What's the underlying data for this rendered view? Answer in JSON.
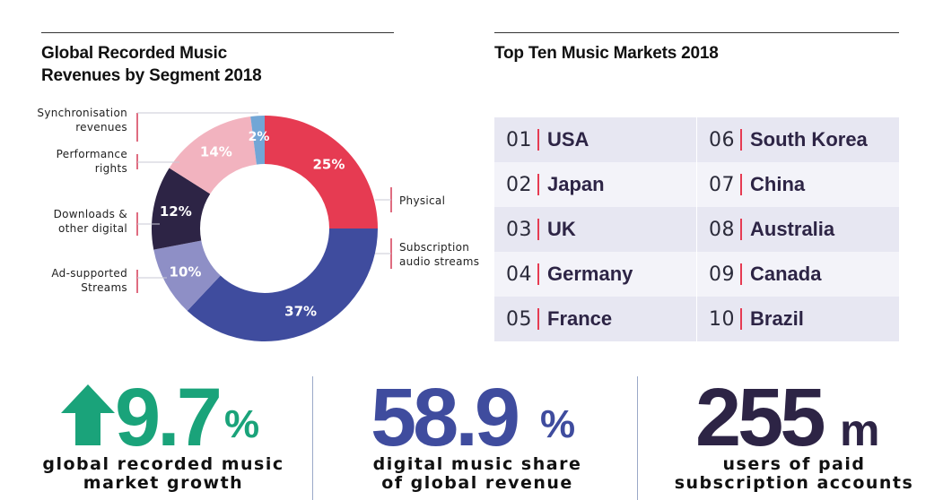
{
  "colors": {
    "physical": "#e63b52",
    "subscription": "#3f4c9e",
    "ad_supported": "#8e8fc6",
    "downloads": "#2d2445",
    "performance": "#f2b3bf",
    "synchronisation": "#72a6d6",
    "growth_green": "#1aa37a",
    "share_blue": "#3f4c9e",
    "users_dark": "#2d2445",
    "cell_light": "#f3f3f9",
    "cell_dark": "#e7e7f2"
  },
  "chart_data": {
    "type": "pie",
    "title": "Global Recorded Music Revenues by Segment 2018",
    "title_lines": [
      "Global Recorded Music",
      "Revenues by Segment 2018"
    ],
    "donut": true,
    "series": [
      {
        "name": "Physical",
        "name_lines": [
          "Physical"
        ],
        "value": 25,
        "label": "25%",
        "side": "right"
      },
      {
        "name": "Subscription audio streams",
        "name_lines": [
          "Subscription",
          "audio streams"
        ],
        "value": 37,
        "label": "37%",
        "side": "right"
      },
      {
        "name": "Ad-supported Streams",
        "name_lines": [
          "Ad-supported",
          "Streams"
        ],
        "value": 10,
        "label": "10%",
        "side": "left"
      },
      {
        "name": "Downloads & other digital",
        "name_lines": [
          "Downloads &",
          "other digital"
        ],
        "value": 12,
        "label": "12%",
        "side": "left"
      },
      {
        "name": "Performance rights",
        "name_lines": [
          "Performance",
          "rights"
        ],
        "value": 14,
        "label": "14%",
        "side": "left"
      },
      {
        "name": "Synchronisation revenues",
        "name_lines": [
          "Synchronisation",
          "revenues"
        ],
        "value": 2,
        "label": "2%",
        "side": "left"
      }
    ]
  },
  "markets": {
    "title": "Top Ten Music Markets 2018",
    "items": [
      {
        "rank": "01",
        "name": "USA"
      },
      {
        "rank": "02",
        "name": "Japan"
      },
      {
        "rank": "03",
        "name": "UK"
      },
      {
        "rank": "04",
        "name": "Germany"
      },
      {
        "rank": "05",
        "name": "France"
      },
      {
        "rank": "06",
        "name": "South Korea"
      },
      {
        "rank": "07",
        "name": "China"
      },
      {
        "rank": "08",
        "name": "Australia"
      },
      {
        "rank": "09",
        "name": "Canada"
      },
      {
        "rank": "10",
        "name": "Brazil"
      }
    ]
  },
  "stats": {
    "growth": {
      "value": "9.7",
      "unit": "%",
      "caption_lines": [
        "global recorded music",
        "market growth"
      ],
      "icon": "up-arrow-icon"
    },
    "digital_share": {
      "value": "58.9",
      "unit": "%",
      "caption_lines": [
        "digital music share",
        "of global revenue"
      ]
    },
    "users": {
      "value": "255",
      "unit": "m",
      "caption_lines": [
        "users of paid",
        "subscription accounts"
      ]
    }
  }
}
